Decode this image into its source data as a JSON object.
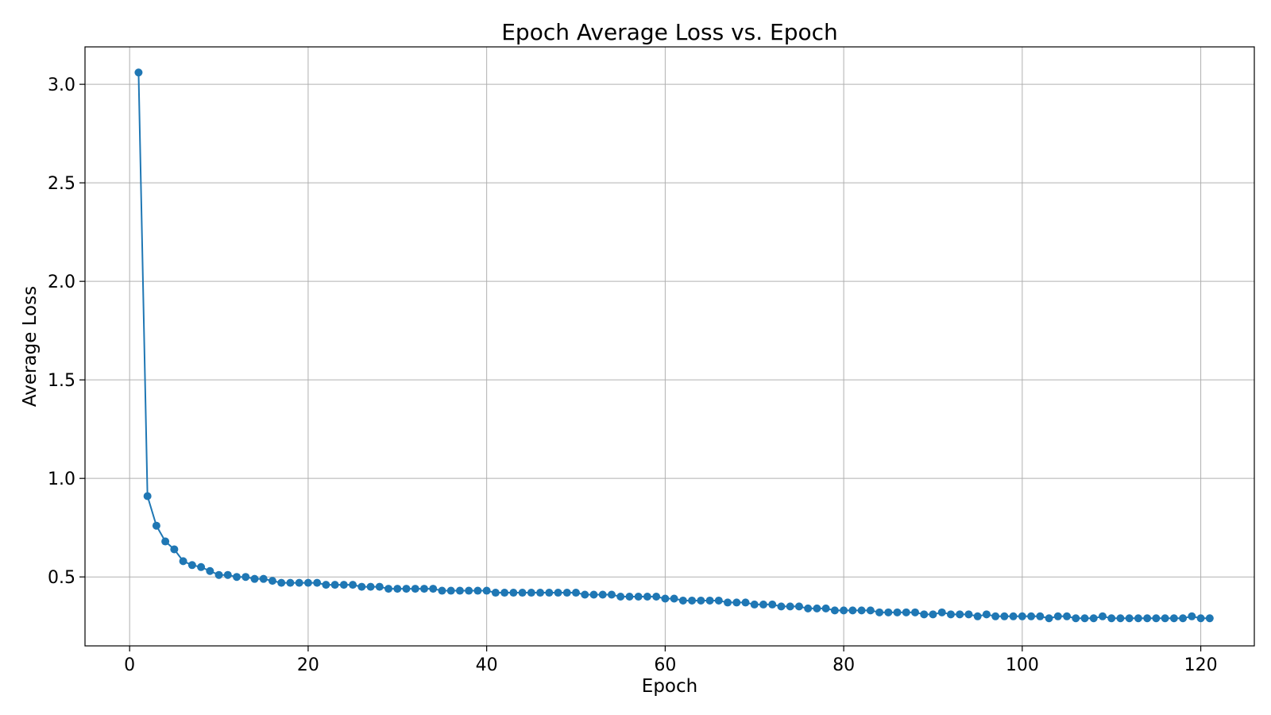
{
  "chart_data": {
    "type": "line",
    "title": "Epoch Average Loss vs. Epoch",
    "xlabel": "Epoch",
    "ylabel": "Average Loss",
    "xlim": [
      -5,
      126
    ],
    "ylim": [
      0.15,
      3.19
    ],
    "xticks": [
      0,
      20,
      40,
      60,
      80,
      100,
      120
    ],
    "xtick_labels": [
      "0",
      "20",
      "40",
      "60",
      "80",
      "100",
      "120"
    ],
    "yticks": [
      0.5,
      1.0,
      1.5,
      2.0,
      2.5,
      3.0
    ],
    "ytick_labels": [
      "0.5",
      "1.0",
      "1.5",
      "2.0",
      "2.5",
      "3.0"
    ],
    "grid": true,
    "series": [
      {
        "color": "#1f77b4",
        "marker": "circle",
        "x": [
          1,
          2,
          3,
          4,
          5,
          6,
          7,
          8,
          9,
          10,
          11,
          12,
          13,
          14,
          15,
          16,
          17,
          18,
          19,
          20,
          21,
          22,
          23,
          24,
          25,
          26,
          27,
          28,
          29,
          30,
          31,
          32,
          33,
          34,
          35,
          36,
          37,
          38,
          39,
          40,
          41,
          42,
          43,
          44,
          45,
          46,
          47,
          48,
          49,
          50,
          51,
          52,
          53,
          54,
          55,
          56,
          57,
          58,
          59,
          60,
          61,
          62,
          63,
          64,
          65,
          66,
          67,
          68,
          69,
          70,
          71,
          72,
          73,
          74,
          75,
          76,
          77,
          78,
          79,
          80,
          81,
          82,
          83,
          84,
          85,
          86,
          87,
          88,
          89,
          90,
          91,
          92,
          93,
          94,
          95,
          96,
          97,
          98,
          99,
          100,
          101,
          102,
          103,
          104,
          105,
          106,
          107,
          108,
          109,
          110,
          111,
          112,
          113,
          114,
          115,
          116,
          117,
          118,
          119,
          120,
          121
        ],
        "y": [
          3.06,
          0.91,
          0.76,
          0.68,
          0.64,
          0.58,
          0.56,
          0.55,
          0.53,
          0.51,
          0.51,
          0.5,
          0.5,
          0.49,
          0.49,
          0.48,
          0.47,
          0.47,
          0.47,
          0.47,
          0.47,
          0.46,
          0.46,
          0.46,
          0.46,
          0.45,
          0.45,
          0.45,
          0.44,
          0.44,
          0.44,
          0.44,
          0.44,
          0.44,
          0.43,
          0.43,
          0.43,
          0.43,
          0.43,
          0.43,
          0.42,
          0.42,
          0.42,
          0.42,
          0.42,
          0.42,
          0.42,
          0.42,
          0.42,
          0.42,
          0.41,
          0.41,
          0.41,
          0.41,
          0.4,
          0.4,
          0.4,
          0.4,
          0.4,
          0.39,
          0.39,
          0.38,
          0.38,
          0.38,
          0.38,
          0.38,
          0.37,
          0.37,
          0.37,
          0.36,
          0.36,
          0.36,
          0.35,
          0.35,
          0.35,
          0.34,
          0.34,
          0.34,
          0.33,
          0.33,
          0.33,
          0.33,
          0.33,
          0.32,
          0.32,
          0.32,
          0.32,
          0.32,
          0.31,
          0.31,
          0.32,
          0.31,
          0.31,
          0.31,
          0.3,
          0.31,
          0.3,
          0.3,
          0.3,
          0.3,
          0.3,
          0.3,
          0.29,
          0.3,
          0.3,
          0.29,
          0.29,
          0.29,
          0.3,
          0.29,
          0.29,
          0.29,
          0.29,
          0.29,
          0.29,
          0.29,
          0.29,
          0.29,
          0.3,
          0.29,
          0.29
        ]
      }
    ]
  }
}
